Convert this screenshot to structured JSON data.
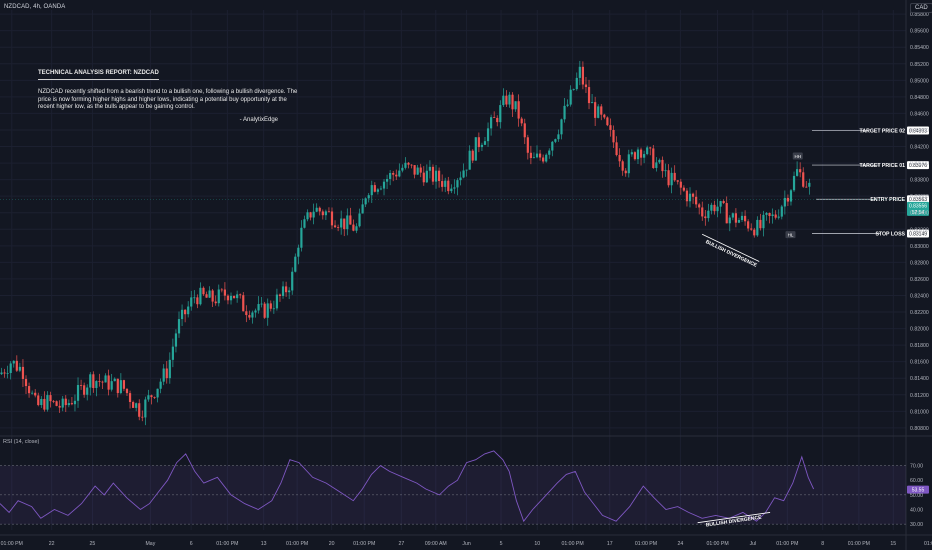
{
  "header": {
    "symbol_line": "NZDCAD, 4h, OANDA",
    "currency": "CAD"
  },
  "report": {
    "title": "TECHNICAL ANALYSIS REPORT: NZDCAD",
    "body": "NZDCAD recently shifted from a bearish trend to a bullish one, following a bullish divergence. The price is now forming higher highs and higher lows, indicating a potential buy opportunity at the recent higher low, as the bulls appear to be gaining control.",
    "signature": "- AnalytixEdge"
  },
  "rsi_panel": {
    "title": "RSI (14, close)"
  },
  "colors": {
    "background": "#131722",
    "bull": "#26a69a",
    "bear": "#ef5350",
    "rsi_line": "#7e57c2",
    "rsi_band": "#7e57c2",
    "entry_badge": "#26a69a",
    "text": "#d1d4dc"
  },
  "chart_data": [
    {
      "type": "candlestick",
      "title": "",
      "ylim": [
        0.8075,
        0.8585
      ],
      "yticks": [
        0.808,
        0.81,
        0.812,
        0.814,
        0.816,
        0.818,
        0.82,
        0.822,
        0.824,
        0.826,
        0.828,
        0.83,
        0.832,
        0.834,
        0.836,
        0.838,
        0.84,
        0.842,
        0.844,
        0.846,
        0.848,
        0.85,
        0.852,
        0.854,
        0.856,
        0.858
      ],
      "ytick_labels": [
        "0.80800",
        "0.81000",
        "0.81200",
        "0.81400",
        "0.81600",
        "0.81800",
        "0.82000",
        "0.82200",
        "0.82400",
        "0.82600",
        "0.82800",
        "0.83000",
        "0.83200",
        "0.83400",
        "0.83600",
        "0.83800",
        "0.84000",
        "0.84200",
        "0.84400",
        "0.84600",
        "0.84800",
        "0.85000",
        "0.85200",
        "0.85400",
        "0.85600",
        "0.85800"
      ],
      "x_labels": [
        "01:00 PM",
        "22",
        "25",
        "May",
        "6",
        "01:00 PM",
        "13",
        "01:00 PM",
        "20",
        "01:00 PM",
        "27",
        "09:00 AM",
        "Jun",
        "5",
        "10",
        "01:00 PM",
        "17",
        "01:00 PM",
        "24",
        "01:00 PM",
        "Jul",
        "01:00 PM",
        "8",
        "01:00 PM",
        "15",
        "01:00"
      ],
      "x_label_frac": [
        0.013,
        0.057,
        0.102,
        0.166,
        0.211,
        0.251,
        0.291,
        0.328,
        0.366,
        0.402,
        0.443,
        0.481,
        0.515,
        0.553,
        0.593,
        0.632,
        0.673,
        0.713,
        0.751,
        0.792,
        0.831,
        0.869,
        0.908,
        0.948,
        0.986,
        1.027
      ],
      "path": [
        [
          0.0,
          0.8145
        ],
        [
          0.012,
          0.816
        ],
        [
          0.025,
          0.815
        ],
        [
          0.04,
          0.8105
        ],
        [
          0.05,
          0.8112
        ],
        [
          0.07,
          0.8105
        ],
        [
          0.085,
          0.812
        ],
        [
          0.1,
          0.814
        ],
        [
          0.115,
          0.8135
        ],
        [
          0.135,
          0.813
        ],
        [
          0.155,
          0.81
        ],
        [
          0.17,
          0.8125
        ],
        [
          0.185,
          0.815
        ],
        [
          0.195,
          0.82
        ],
        [
          0.215,
          0.824
        ],
        [
          0.235,
          0.8235
        ],
        [
          0.255,
          0.8245
        ],
        [
          0.27,
          0.8225
        ],
        [
          0.29,
          0.822
        ],
        [
          0.3,
          0.823
        ],
        [
          0.312,
          0.824
        ],
        [
          0.322,
          0.826
        ],
        [
          0.33,
          0.831
        ],
        [
          0.345,
          0.8345
        ],
        [
          0.36,
          0.834
        ],
        [
          0.375,
          0.833
        ],
        [
          0.395,
          0.832
        ],
        [
          0.405,
          0.837
        ],
        [
          0.425,
          0.838
        ],
        [
          0.445,
          0.8395
        ],
        [
          0.46,
          0.839
        ],
        [
          0.475,
          0.8385
        ],
        [
          0.495,
          0.8375
        ],
        [
          0.51,
          0.839
        ],
        [
          0.525,
          0.842
        ],
        [
          0.545,
          0.845
        ],
        [
          0.56,
          0.848
        ],
        [
          0.572,
          0.846
        ],
        [
          0.585,
          0.84
        ],
        [
          0.6,
          0.841
        ],
        [
          0.615,
          0.844
        ],
        [
          0.63,
          0.848
        ],
        [
          0.64,
          0.851
        ],
        [
          0.65,
          0.8475
        ],
        [
          0.665,
          0.845
        ],
        [
          0.68,
          0.842
        ],
        [
          0.69,
          0.8395
        ],
        [
          0.705,
          0.842
        ],
        [
          0.72,
          0.8405
        ],
        [
          0.735,
          0.8385
        ],
        [
          0.75,
          0.837
        ],
        [
          0.765,
          0.8355
        ],
        [
          0.775,
          0.834
        ],
        [
          0.79,
          0.835
        ],
        [
          0.805,
          0.8335
        ],
        [
          0.82,
          0.833
        ],
        [
          0.838,
          0.832
        ],
        [
          0.845,
          0.833
        ],
        [
          0.855,
          0.8335
        ],
        [
          0.87,
          0.8365
        ],
        [
          0.88,
          0.839
        ],
        [
          0.888,
          0.838
        ],
        [
          0.895,
          0.8368
        ]
      ],
      "levels": [
        {
          "label": "TARGET PRICE 02",
          "value": 0.84393,
          "value_label": "0.84393"
        },
        {
          "label": "TARGET PRICE 01",
          "value": 0.83976,
          "value_label": "0.83976"
        },
        {
          "label": "ENTRY PRICE",
          "value": 0.83563,
          "value_label": "0.83563"
        },
        {
          "label": "STOP LOSS",
          "value": 0.83149,
          "value_label": "0.83149"
        }
      ],
      "current_price": {
        "value": 0.83556,
        "value_label": "0.83556",
        "countdown": "57:54"
      },
      "annotations": [
        {
          "text": "HH",
          "x": 0.8805,
          "y": 0.8408
        },
        {
          "text": "HL",
          "x": 0.8725,
          "y": 0.8313
        },
        {
          "text": "BULLISH DIVERGENCE",
          "x1": 0.775,
          "y1": 0.8314,
          "x2": 0.838,
          "y2": 0.8281
        }
      ]
    },
    {
      "type": "line",
      "title": "RSI (14, close)",
      "ylim": [
        26,
        82
      ],
      "yticks": [
        70,
        60,
        50,
        40,
        30
      ],
      "ytick_labels": [
        "70.00",
        "60.00",
        "50.00",
        "40.00",
        "30.00"
      ],
      "band": [
        30,
        70
      ],
      "current": {
        "value": 53.55,
        "value_label": "53.55"
      },
      "path": [
        [
          0.0,
          44
        ],
        [
          0.01,
          38
        ],
        [
          0.02,
          46
        ],
        [
          0.035,
          42
        ],
        [
          0.045,
          34
        ],
        [
          0.06,
          40
        ],
        [
          0.075,
          36
        ],
        [
          0.09,
          44
        ],
        [
          0.105,
          56
        ],
        [
          0.115,
          50
        ],
        [
          0.125,
          58
        ],
        [
          0.14,
          48
        ],
        [
          0.155,
          40
        ],
        [
          0.165,
          44
        ],
        [
          0.175,
          52
        ],
        [
          0.185,
          60
        ],
        [
          0.195,
          72
        ],
        [
          0.205,
          78
        ],
        [
          0.215,
          66
        ],
        [
          0.225,
          58
        ],
        [
          0.24,
          62
        ],
        [
          0.255,
          50
        ],
        [
          0.27,
          44
        ],
        [
          0.285,
          40
        ],
        [
          0.3,
          46
        ],
        [
          0.31,
          58
        ],
        [
          0.32,
          74
        ],
        [
          0.33,
          72
        ],
        [
          0.345,
          62
        ],
        [
          0.36,
          58
        ],
        [
          0.375,
          52
        ],
        [
          0.39,
          46
        ],
        [
          0.4,
          54
        ],
        [
          0.41,
          64
        ],
        [
          0.42,
          70
        ],
        [
          0.43,
          66
        ],
        [
          0.445,
          62
        ],
        [
          0.46,
          58
        ],
        [
          0.47,
          54
        ],
        [
          0.485,
          50
        ],
        [
          0.495,
          56
        ],
        [
          0.505,
          60
        ],
        [
          0.515,
          72
        ],
        [
          0.525,
          74
        ],
        [
          0.535,
          78
        ],
        [
          0.545,
          80
        ],
        [
          0.555,
          74
        ],
        [
          0.562,
          66
        ],
        [
          0.57,
          46
        ],
        [
          0.578,
          32
        ],
        [
          0.588,
          40
        ],
        [
          0.6,
          48
        ],
        [
          0.615,
          58
        ],
        [
          0.625,
          64
        ],
        [
          0.635,
          66
        ],
        [
          0.645,
          52
        ],
        [
          0.655,
          44
        ],
        [
          0.665,
          36
        ],
        [
          0.68,
          32
        ],
        [
          0.695,
          42
        ],
        [
          0.71,
          56
        ],
        [
          0.722,
          48
        ],
        [
          0.735,
          40
        ],
        [
          0.748,
          42
        ],
        [
          0.76,
          38
        ],
        [
          0.775,
          34
        ],
        [
          0.79,
          36
        ],
        [
          0.805,
          34
        ],
        [
          0.82,
          38
        ],
        [
          0.835,
          32
        ],
        [
          0.845,
          38
        ],
        [
          0.855,
          48
        ],
        [
          0.865,
          46
        ],
        [
          0.875,
          58
        ],
        [
          0.885,
          76
        ],
        [
          0.892,
          62
        ],
        [
          0.898,
          54
        ]
      ],
      "annotations": [
        {
          "text": "BULLISH DIVERGENCE",
          "x1": 0.77,
          "y1": 31,
          "x2": 0.85,
          "y2": 38
        }
      ]
    }
  ]
}
